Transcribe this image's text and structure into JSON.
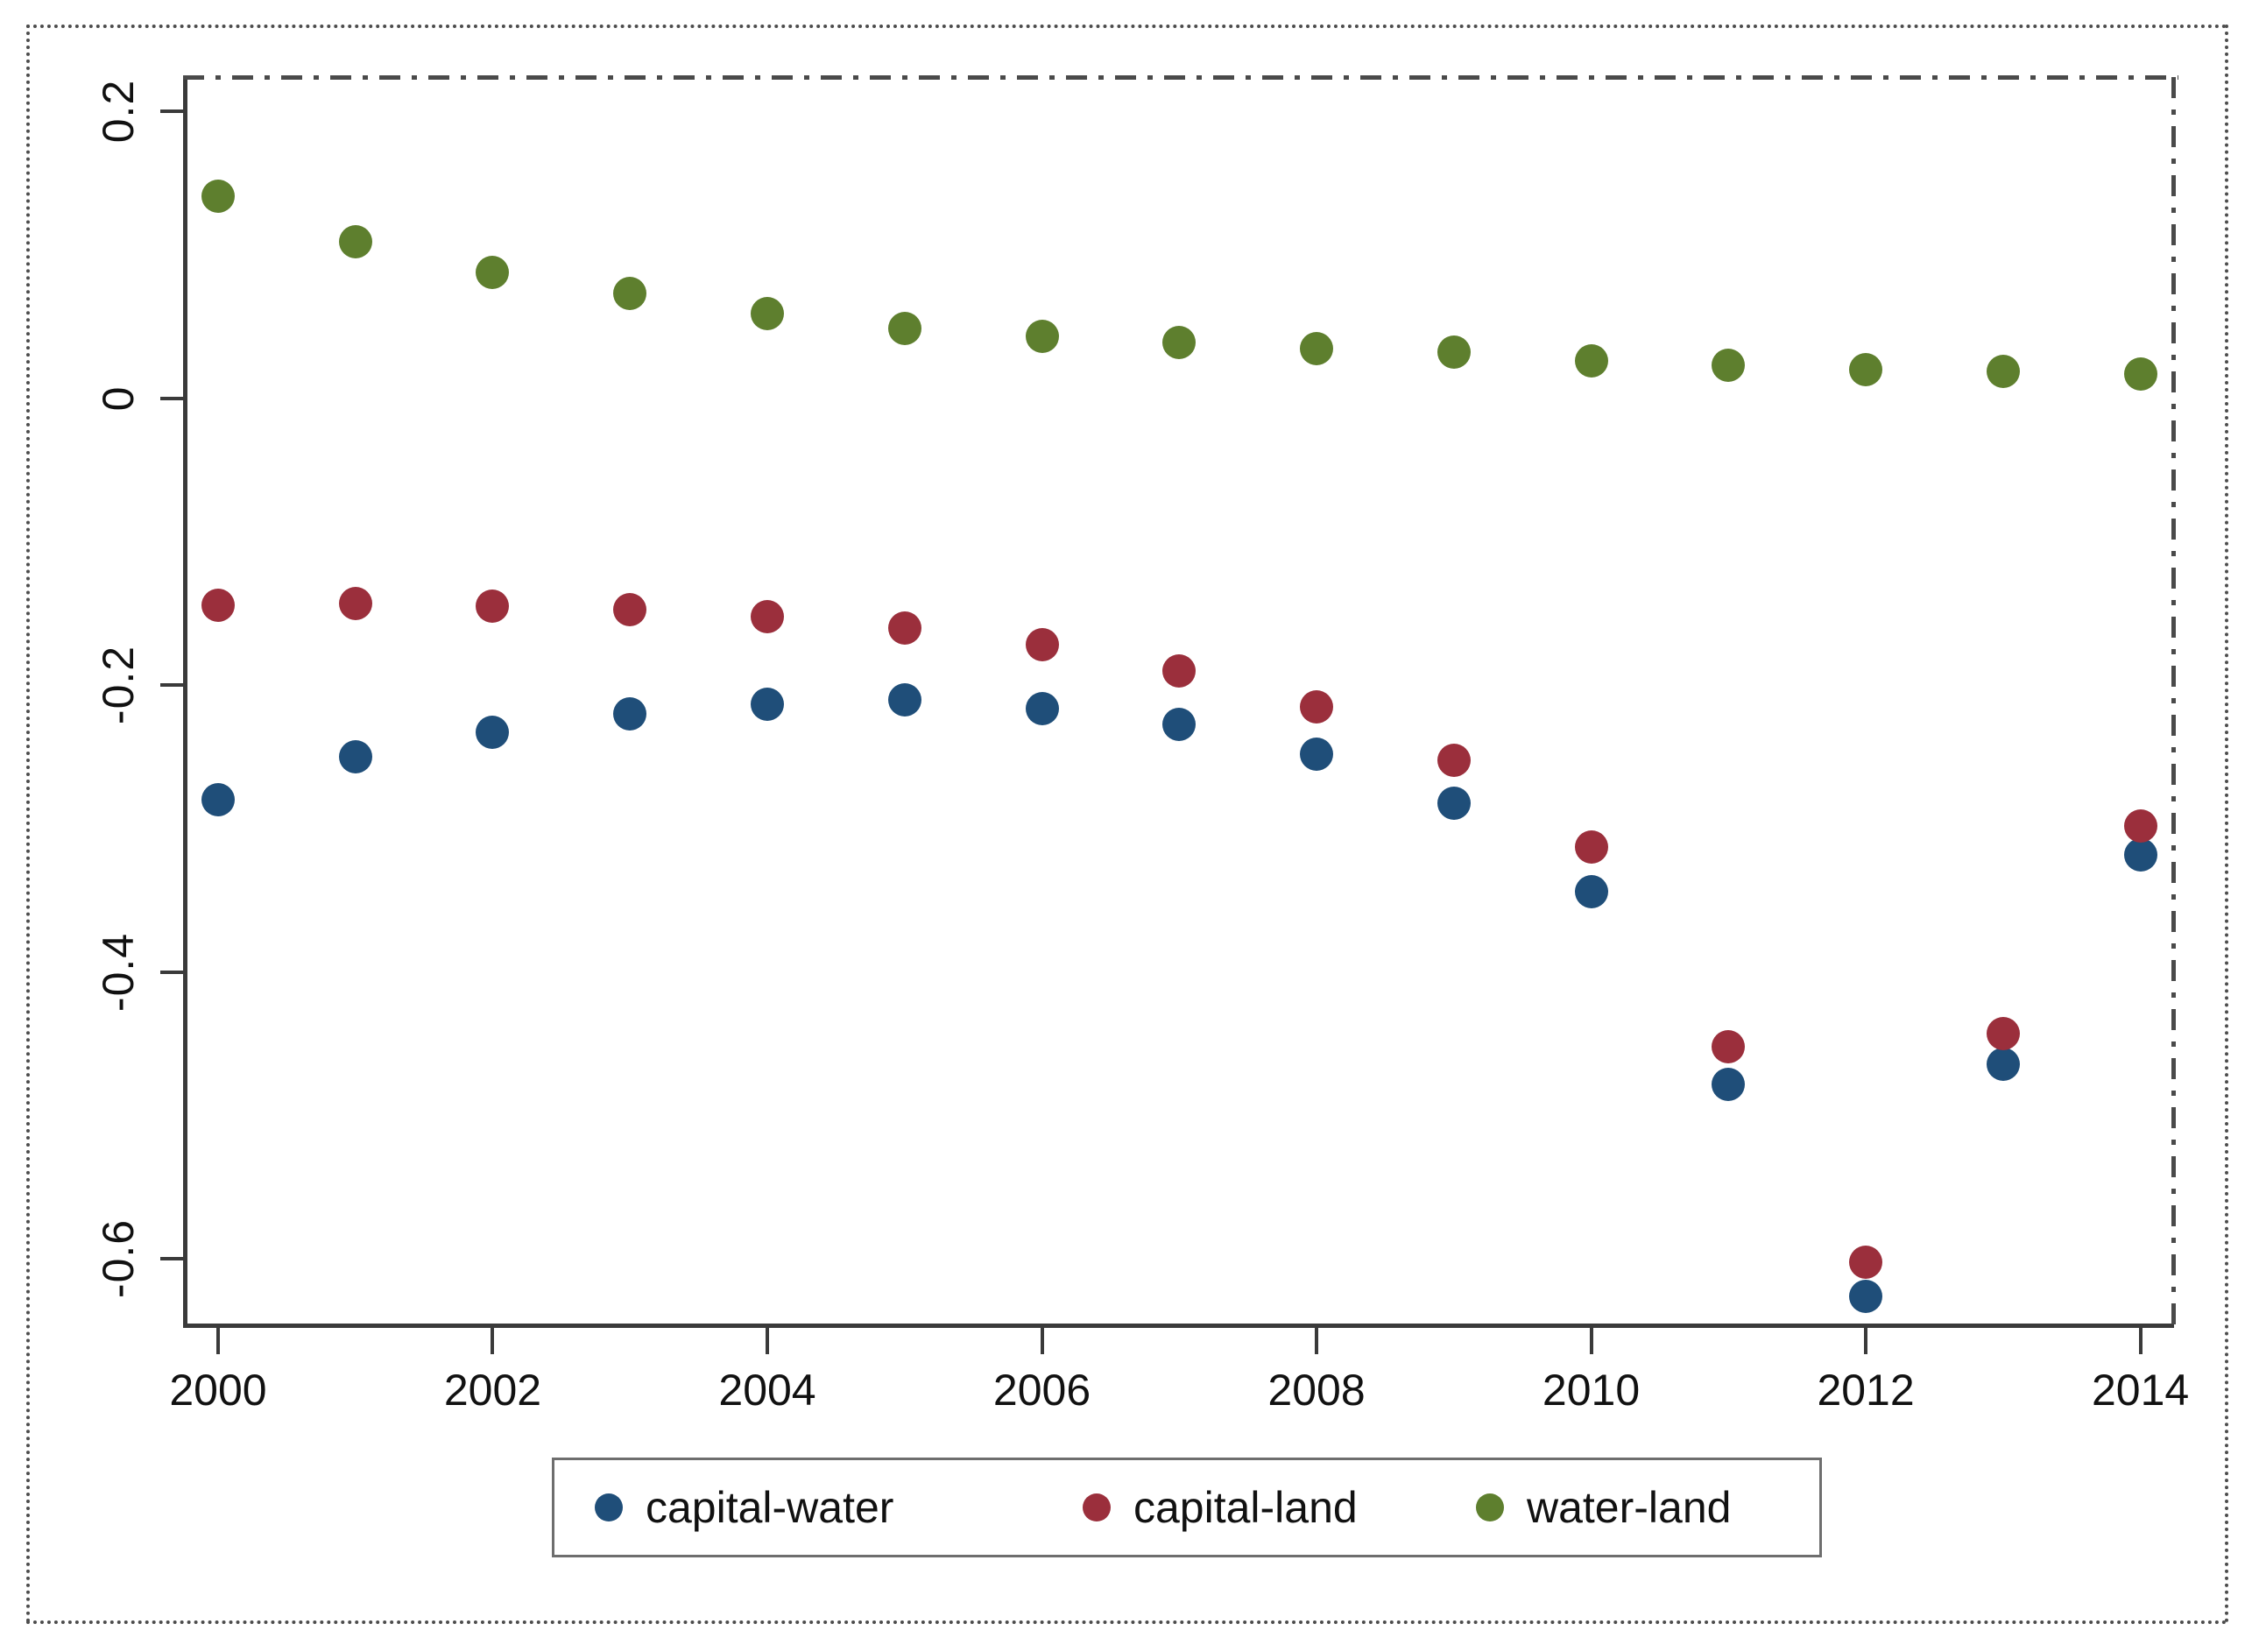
{
  "figure": {
    "background": "#ffffff",
    "outer_border_color": "#4d4d4d",
    "axis_color": "#3a3a3a",
    "frame_dashdot_color": "#4a4a4a",
    "text_color": "#111111"
  },
  "chart_data": {
    "type": "scatter",
    "x": [
      2000,
      2001,
      2002,
      2003,
      2004,
      2005,
      2006,
      2007,
      2008,
      2009,
      2010,
      2011,
      2012,
      2013,
      2014
    ],
    "series": [
      {
        "name": "capital-water",
        "color": "#1f4e79",
        "values": [
          -0.28,
          -0.25,
          -0.233,
          -0.22,
          -0.213,
          -0.21,
          -0.216,
          -0.227,
          -0.248,
          -0.282,
          -0.344,
          -0.478,
          -0.626,
          -0.464,
          -0.318
        ]
      },
      {
        "name": "capital-land",
        "color": "#9b2f3c",
        "values": [
          -0.144,
          -0.143,
          -0.145,
          -0.147,
          -0.152,
          -0.16,
          -0.172,
          -0.19,
          -0.215,
          -0.252,
          -0.313,
          -0.452,
          -0.602,
          -0.443,
          -0.298
        ]
      },
      {
        "name": "water-land",
        "color": "#5e7f2e",
        "values": [
          0.141,
          0.109,
          0.088,
          0.073,
          0.059,
          0.049,
          0.043,
          0.039,
          0.035,
          0.032,
          0.026,
          0.023,
          0.02,
          0.019,
          0.017
        ]
      }
    ],
    "title": "",
    "xlabel": "",
    "ylabel": "",
    "xlim": [
      1999.745,
      2014.245
    ],
    "ylim": [
      -0.648,
      0.224
    ],
    "x_ticks": [
      2000,
      2002,
      2004,
      2006,
      2008,
      2010,
      2012,
      2014
    ],
    "x_tick_labels": [
      "2000",
      "2002",
      "2004",
      "2006",
      "2008",
      "2010",
      "2012",
      "2014"
    ],
    "y_ticks": [
      0.2,
      0,
      -0.2,
      -0.4,
      -0.6
    ],
    "y_tick_labels": [
      "0.2",
      "0",
      "-0.2",
      "-0.4",
      "-0.6"
    ],
    "grid": false,
    "legend_position": "bottom-center",
    "legend_entries": [
      "capital-water",
      "capital-land",
      "water-land"
    ]
  }
}
